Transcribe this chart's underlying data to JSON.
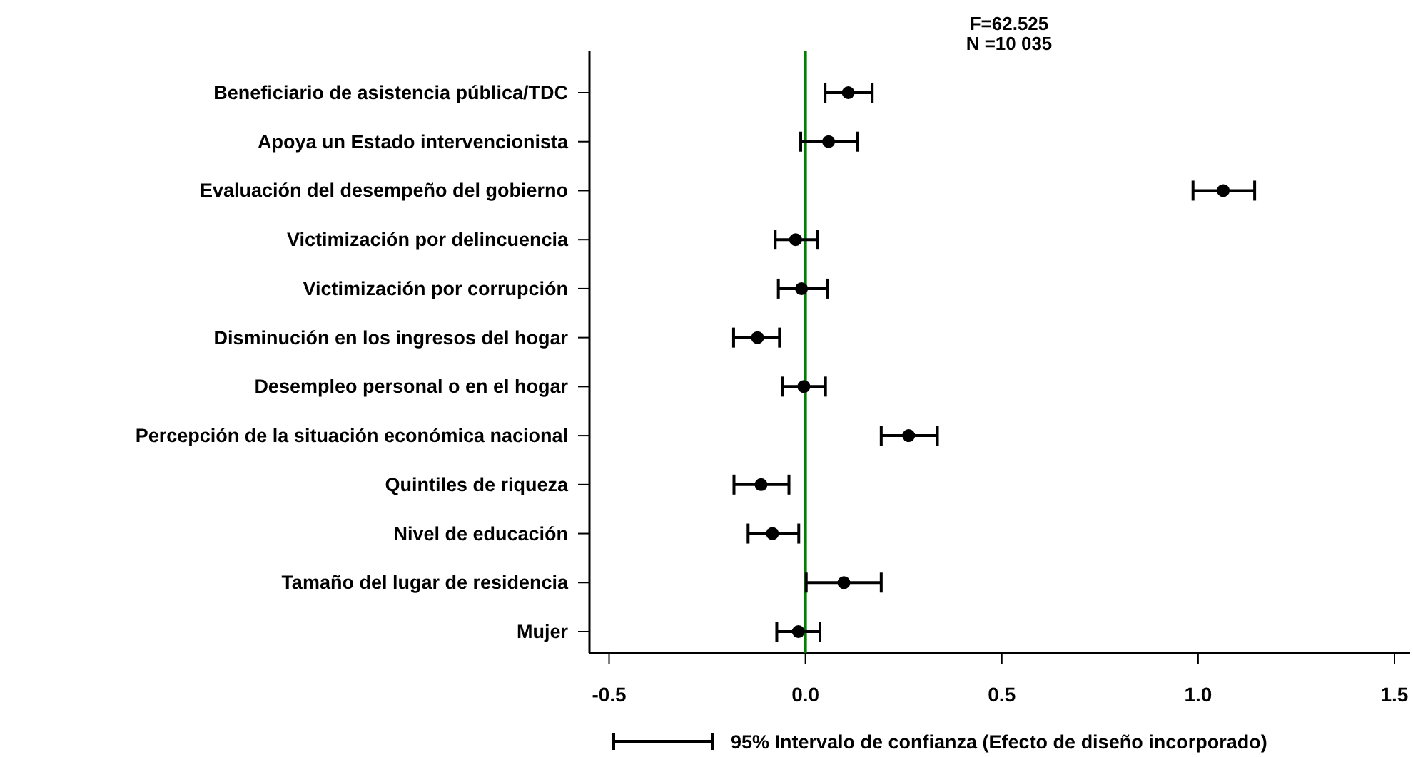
{
  "chart_data": {
    "type": "scatter",
    "orientation": "horizontal",
    "categories": [
      "Beneficiario de asistencia pública/TDC",
      "Apoya un Estado intervencionista",
      "Evaluación del desempeño del gobierno",
      "Victimización por delincuencia",
      "Victimización por corrupción",
      "Disminución en los ingresos del hogar",
      "Desempleo personal o en el hogar",
      "Percepción de la situación económica nacional",
      "Quintiles de riqueza",
      "Nivel de educación",
      "Tamaño del lugar de residencia",
      "Mujer"
    ],
    "series": [
      {
        "name": "95% Intervalo de confianza (Efecto de diseño incorporado)",
        "color": "#000000",
        "values": [
          0.109,
          0.059,
          1.064,
          -0.025,
          -0.01,
          -0.122,
          -0.004,
          0.263,
          -0.113,
          -0.084,
          0.098,
          -0.018
        ],
        "errors": [
          [
            0.05,
            0.17
          ],
          [
            -0.012,
            0.133
          ],
          [
            0.987,
            1.144
          ],
          [
            -0.077,
            0.03
          ],
          [
            -0.069,
            0.056
          ],
          [
            -0.183,
            -0.066
          ],
          [
            -0.059,
            0.051
          ],
          [
            0.193,
            0.336
          ],
          [
            -0.182,
            -0.042
          ],
          [
            -0.146,
            -0.017
          ],
          [
            0.002,
            0.193
          ],
          [
            -0.073,
            0.037
          ]
        ]
      }
    ],
    "xlim": [
      -0.55,
      1.54
    ],
    "xticks": [
      {
        "value": -0.5,
        "label": "-0.5"
      },
      {
        "value": 0,
        "label": "0.0"
      },
      {
        "value": 0.5,
        "label": "0.5"
      },
      {
        "value": 1,
        "label": "1.0"
      },
      {
        "value": 1.5,
        "label": "1.5"
      }
    ],
    "ref_lines": [
      {
        "axis": "x",
        "value": 0,
        "color": "#008000"
      }
    ],
    "annotations": [
      "F=62.525",
      "N =10 035"
    ],
    "marker": "circle",
    "legend": "bottom",
    "grid": false
  }
}
